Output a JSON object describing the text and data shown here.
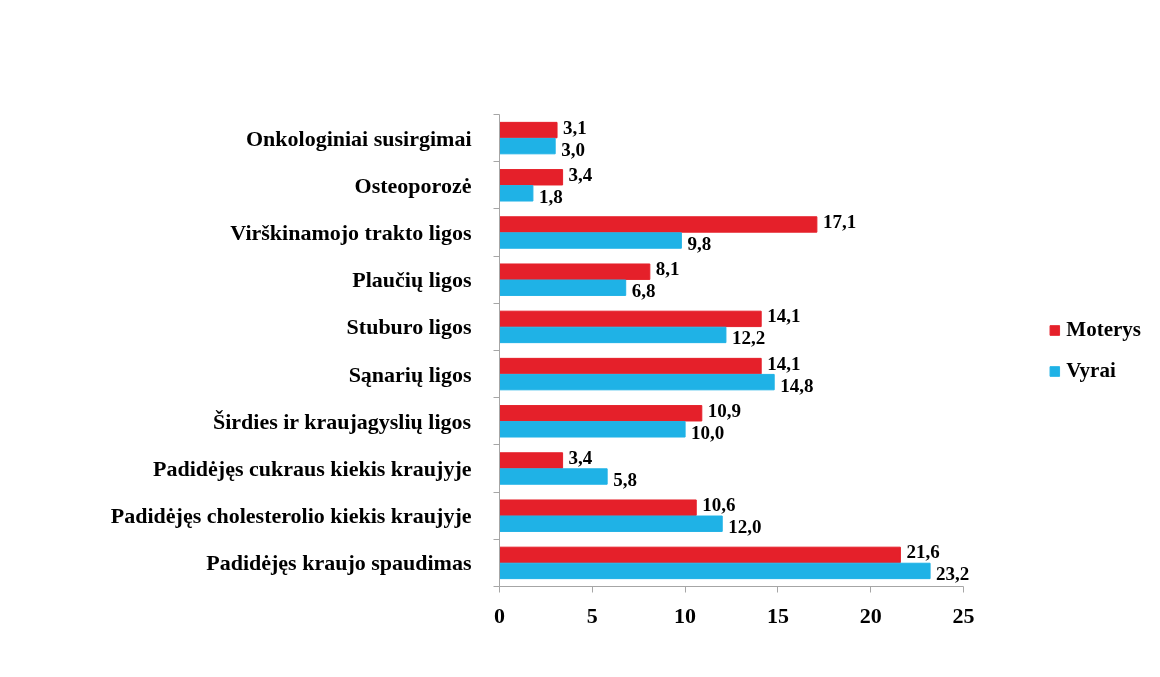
{
  "chart_data": {
    "type": "bar",
    "orientation": "horizontal",
    "categories": [
      "Onkologiniai susirgimai",
      "Osteoporozė",
      "Virškinamojo trakto ligos",
      "Plaučių ligos",
      "Stuburo ligos",
      "Sąnarių ligos",
      "Širdies ir kraujagyslių ligos",
      "Padidėjęs cukraus kiekis kraujyje",
      "Padidėjęs cholesterolio kiekis kraujyje",
      "Padidėjęs kraujo spaudimas"
    ],
    "series": [
      {
        "name": "Moterys",
        "color": "#e5202a",
        "values": [
          3.1,
          3.4,
          17.1,
          8.1,
          14.1,
          14.1,
          10.9,
          3.4,
          10.6,
          21.6
        ],
        "value_labels": [
          "3,1",
          "3,4",
          "17,1",
          "8,1",
          "14,1",
          "14,1",
          "10,9",
          "3,4",
          "10,6",
          "21,6"
        ]
      },
      {
        "name": "Vyrai",
        "color": "#1fb2e6",
        "values": [
          3.0,
          1.8,
          9.8,
          6.8,
          12.2,
          14.8,
          10.0,
          5.8,
          12.0,
          23.2
        ],
        "value_labels": [
          "3,0",
          "1,8",
          "9,8",
          "6,8",
          "12,2",
          "14,8",
          "10,0",
          "5,8",
          "12,0",
          "23,2"
        ]
      }
    ],
    "xlim": [
      0,
      25
    ],
    "xticks": [
      0,
      5,
      10,
      15,
      20,
      25
    ],
    "grid": false,
    "legend": "right"
  }
}
